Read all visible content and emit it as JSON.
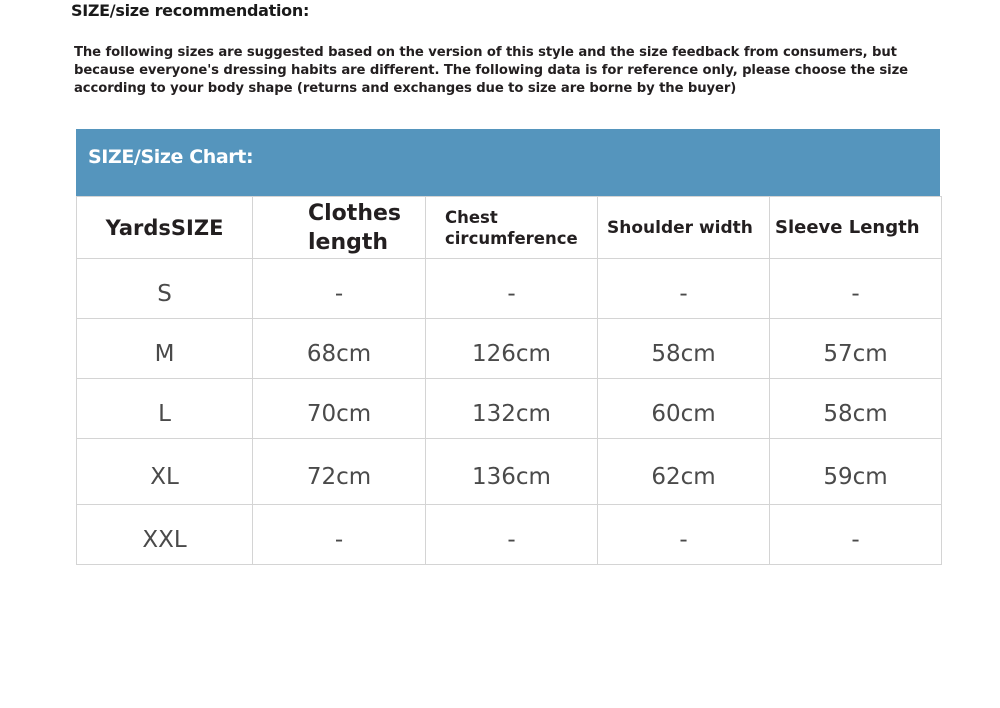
{
  "heading": "SIZE/size recommendation:",
  "description": "The following sizes are suggested based on the version of this style and the size feedback from consumers, but because everyone's dressing habits are different. The following data is for reference only, please choose the size according to your body shape (returns and exchanges due to size are borne by the buyer)",
  "chart_title": "SIZE/Size Chart:",
  "accent_color": "#5595bd",
  "columns": [
    "YardsSIZE",
    "Clothes length",
    "Chest circumference",
    "Shoulder width",
    "Sleeve Length"
  ],
  "rows": [
    [
      "S",
      "-",
      "-",
      "-",
      "-"
    ],
    [
      "M",
      "68cm",
      "126cm",
      "58cm",
      "57cm"
    ],
    [
      "L",
      "70cm",
      "132cm",
      "60cm",
      "58cm"
    ],
    [
      "XL",
      "72cm",
      "136cm",
      "62cm",
      "59cm"
    ],
    [
      "XXL",
      "-",
      "-",
      "-",
      "-"
    ]
  ]
}
